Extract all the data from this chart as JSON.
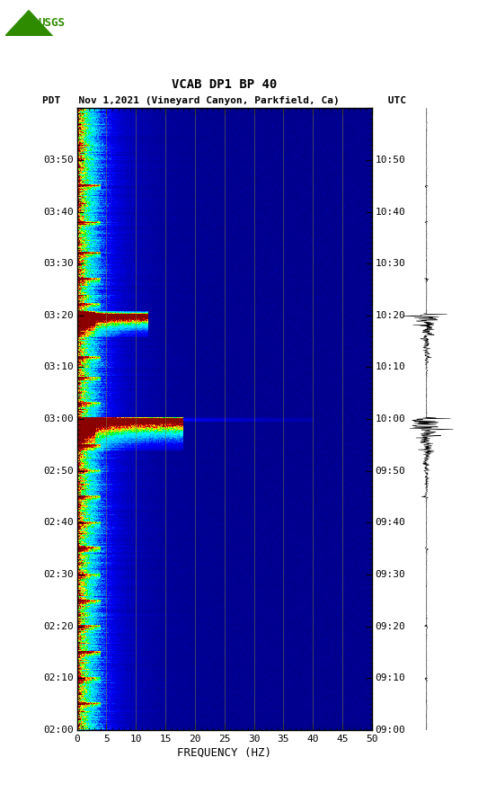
{
  "title_line1": "VCAB DP1 BP 40",
  "title_line2": "PDT   Nov 1,2021 (Vineyard Canyon, Parkfield, Ca)        UTC",
  "xlabel": "FREQUENCY (HZ)",
  "freq_min": 0,
  "freq_max": 50,
  "freq_ticks": [
    0,
    5,
    10,
    15,
    20,
    25,
    30,
    35,
    40,
    45,
    50
  ],
  "freq_labels": [
    "0",
    "5",
    "10",
    "15",
    "20",
    "25",
    "30",
    "35",
    "40",
    "45",
    "50"
  ],
  "time_left_labels": [
    "02:00",
    "02:10",
    "02:20",
    "02:30",
    "02:40",
    "02:50",
    "03:00",
    "03:10",
    "03:20",
    "03:30",
    "03:40",
    "03:50"
  ],
  "time_right_labels": [
    "09:00",
    "09:10",
    "09:20",
    "09:30",
    "09:40",
    "09:50",
    "10:00",
    "10:10",
    "10:20",
    "10:30",
    "10:40",
    "10:50"
  ],
  "n_time_labels": 12,
  "total_minutes": 120,
  "background_color": "#ffffff",
  "grid_color": "#808040",
  "text_color": "#000000",
  "figsize": [
    5.52,
    8.92
  ],
  "dpi": 100,
  "colormap_nodes": [
    [
      0.0,
      "#00008B"
    ],
    [
      0.2,
      "#0000FF"
    ],
    [
      0.35,
      "#00BFFF"
    ],
    [
      0.5,
      "#00FFFF"
    ],
    [
      0.62,
      "#00FF00"
    ],
    [
      0.74,
      "#FFFF00"
    ],
    [
      0.86,
      "#FF8000"
    ],
    [
      0.93,
      "#FF0000"
    ],
    [
      1.0,
      "#8B0000"
    ]
  ]
}
